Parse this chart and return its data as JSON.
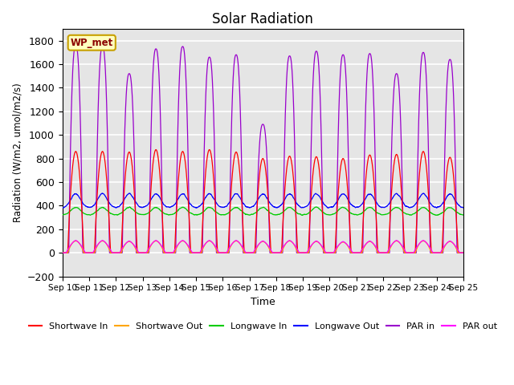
{
  "title": "Solar Radiation",
  "xlabel": "Time",
  "ylabel": "Radiation (W/m2, umol/m2/s)",
  "ylim": [
    -200,
    1900
  ],
  "xlim": [
    0,
    15
  ],
  "yticks": [
    -200,
    0,
    200,
    400,
    600,
    800,
    1000,
    1200,
    1400,
    1600,
    1800
  ],
  "xtick_labels": [
    "Sep 10",
    "Sep 11",
    "Sep 12",
    "Sep 13",
    "Sep 14",
    "Sep 15",
    "Sep 16",
    "Sep 17",
    "Sep 18",
    "Sep 19",
    "Sep 20",
    "Sep 21",
    "Sep 22",
    "Sep 23",
    "Sep 24",
    "Sep 25"
  ],
  "n_days": 15,
  "background_color": "#e5e5e5",
  "grid_color": "#ffffff",
  "annotation_text": "WP_met",
  "annotation_bg": "#ffffc0",
  "annotation_border": "#c8a000",
  "series": {
    "shortwave_in": {
      "color": "#ff0000",
      "label": "Shortwave In"
    },
    "shortwave_out": {
      "color": "#ffa500",
      "label": "Shortwave Out"
    },
    "longwave_in": {
      "color": "#00cc00",
      "label": "Longwave In"
    },
    "longwave_out": {
      "color": "#0000ff",
      "label": "Longwave Out"
    },
    "par_in": {
      "color": "#9900cc",
      "label": "PAR in"
    },
    "par_out": {
      "color": "#ff00ff",
      "label": "PAR out"
    }
  },
  "sw_peaks": [
    860,
    860,
    855,
    875,
    860,
    875,
    855,
    800,
    820,
    815,
    800,
    830,
    835,
    860,
    810
  ],
  "par_peaks": [
    1760,
    1750,
    1520,
    1730,
    1750,
    1660,
    1680,
    1090,
    1670,
    1710,
    1680,
    1690,
    1520,
    1700,
    1640
  ],
  "swo_peaks": [
    100,
    100,
    95,
    100,
    100,
    100,
    100,
    95,
    100,
    95,
    90,
    95,
    100,
    100,
    95
  ],
  "paro_peaks": [
    105,
    105,
    100,
    105,
    105,
    105,
    105,
    100,
    105,
    100,
    95,
    100,
    105,
    105,
    100
  ]
}
